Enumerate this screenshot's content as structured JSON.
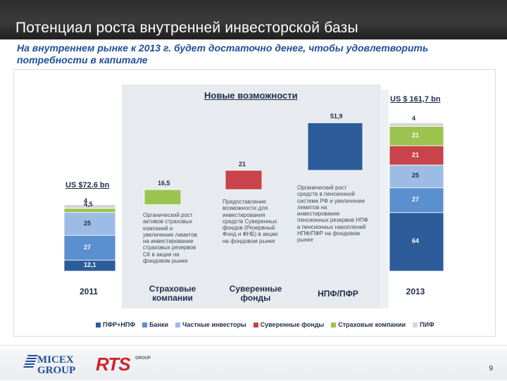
{
  "header": {
    "title": "Потенциал роста внутренней инвесторской базы",
    "subtitle": "На внутреннем рынке к 2013 г. будет достаточно денег, чтобы удовлетворить потребности в капитале"
  },
  "chart_data": {
    "type": "bar",
    "title": "Новые возможности",
    "categories": [
      "2011",
      "Страховые\nкомпании",
      "Суверенные\nфонды",
      "НПФ/ПФР",
      "2013"
    ],
    "series": [
      {
        "name": "ПФР+НПФ",
        "color": "#2c5c9a",
        "values": [
          12.1,
          0,
          0,
          51.9,
          64
        ]
      },
      {
        "name": "Банки",
        "color": "#5a8fd0",
        "values": [
          27,
          0,
          0,
          0,
          27
        ]
      },
      {
        "name": "Частные инвесторы",
        "color": "#9cbce6",
        "values": [
          25,
          0,
          0,
          0,
          25
        ]
      },
      {
        "name": "Суверенные фонды",
        "color": "#c8434a",
        "values": [
          0,
          0,
          21,
          0,
          21
        ]
      },
      {
        "name": "Страховые компании",
        "color": "#9ac44f",
        "values": [
          4.5,
          16.5,
          0,
          0,
          21
        ]
      },
      {
        "name": "ПИФ",
        "color": "#d6d6d6",
        "values": [
          4,
          0,
          0,
          0,
          4
        ]
      }
    ],
    "data_labels": {
      "c0": [
        "12,1",
        "27",
        "25",
        "4,5",
        "4"
      ],
      "c1": "16,5",
      "c2": "21",
      "c3": "51,9",
      "c4": [
        "64",
        "27",
        "25",
        "21",
        "21",
        "4"
      ]
    },
    "totals": [
      "US $72.6 bn",
      "US $ 161,7 bn"
    ],
    "descriptions": [
      "Органический рост\nактивов страховых\nкомпаний и\nувеличение лимитов\nна инвестирование\nстраховых резервов\nСК в акции на\nфондовом рынке",
      "Предоставление\nвозможности для\nинвестирования\nсредств Суверенных\nфондов (Резервный\nФонд и ФНБ) в акции\nна фондовом рынке",
      "Органический рост\nсредств в пенсионной\nсистеме РФ и увеличение\nлимитов на\nинвестирование\nпенсионных резервов НПФ\nи пенсионных накоплений\nНПФ/ПФР на фондовом\nрынке"
    ],
    "legend_position": "bottom",
    "grid": false
  },
  "footer": {
    "logo_micex": "MICEX\nGROUP",
    "logo_rts": "RTS",
    "logo_rts_group": "GROUP",
    "page_number": "9"
  }
}
